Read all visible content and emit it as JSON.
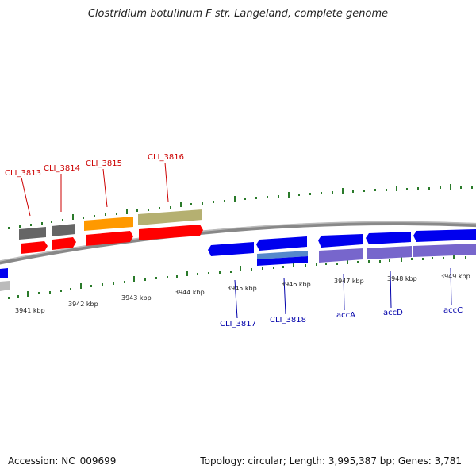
{
  "title": "Clostridium botulinum F str. Langeland, complete genome",
  "footer": {
    "accession": "Accession: NC_009699",
    "summary": "Topology: circular; Length: 3,995,387 bp; Genes: 3,781"
  },
  "colors": {
    "forward_label": "#cc0000",
    "reverse_label": "#0000aa",
    "tick": "#2a7a2a",
    "backbone": "#888888"
  },
  "kbp_ticks": [
    "3941 kbp",
    "3942 kbp",
    "3943 kbp",
    "3944 kbp",
    "3945 kbp",
    "3946 kbp",
    "3947 kbp",
    "3948 kbp",
    "3949 kbp"
  ],
  "forward_genes": [
    {
      "label": "CLI_3813"
    },
    {
      "label": "CLI_3814"
    },
    {
      "label": "CLI_3815"
    },
    {
      "label": "CLI_3816"
    }
  ],
  "reverse_genes": [
    {
      "label": "CLI_3817"
    },
    {
      "label": "CLI_3818"
    },
    {
      "label": "accA"
    },
    {
      "label": "accD"
    },
    {
      "label": "accC"
    }
  ]
}
